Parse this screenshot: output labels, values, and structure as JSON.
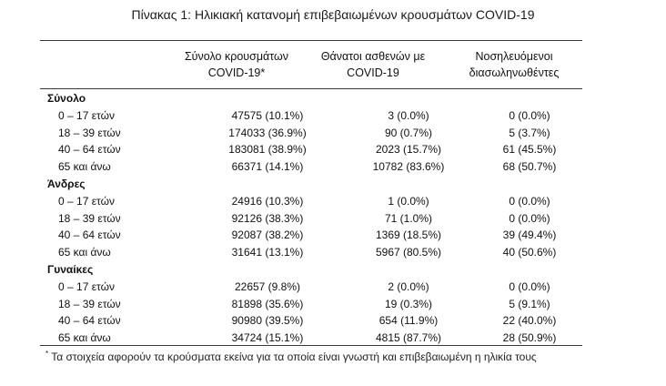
{
  "title": "Πίνακας 1: Ηλικιακή κατανομή επιβεβαιωμένων κρουσμάτων COVID-19",
  "columns": [
    {
      "line1": "Σύνολο κρουσμάτων",
      "line2": "COVID-19*"
    },
    {
      "line1": "Θάνατοι ασθενών με",
      "line2": "COVID-19"
    },
    {
      "line1": "Νοσηλευόμενοι",
      "line2": "διασωληνωθέντες"
    }
  ],
  "groups": [
    {
      "name": "Σύνολο",
      "rows": [
        {
          "age": "0 – 17 ετών",
          "cases": "47575 (10.1%)",
          "deaths": "3 (0.0%)",
          "icu": "0 (0.0%)"
        },
        {
          "age": "18 – 39 ετών",
          "cases": "174033 (36.9%)",
          "deaths": "90 (0.7%)",
          "icu": "5 (3.7%)"
        },
        {
          "age": "40 – 64 ετών",
          "cases": "183081 (38.9%)",
          "deaths": "2023 (15.7%)",
          "icu": "61 (45.5%)"
        },
        {
          "age": "65 και άνω",
          "cases": "66371 (14.1%)",
          "deaths": "10782 (83.6%)",
          "icu": "68 (50.7%)"
        }
      ]
    },
    {
      "name": "Άνδρες",
      "rows": [
        {
          "age": "0 – 17 ετών",
          "cases": "24916 (10.3%)",
          "deaths": "1 (0.0%)",
          "icu": "0 (0.0%)"
        },
        {
          "age": "18 – 39 ετών",
          "cases": "92126 (38.3%)",
          "deaths": "71 (1.0%)",
          "icu": "0 (0.0%)"
        },
        {
          "age": "40 – 64 ετών",
          "cases": "92087 (38.2%)",
          "deaths": "1369 (18.5%)",
          "icu": "39 (49.4%)"
        },
        {
          "age": "65 και άνω",
          "cases": "31641 (13.1%)",
          "deaths": "5967 (80.5%)",
          "icu": "40 (50.6%)"
        }
      ]
    },
    {
      "name": "Γυναίκες",
      "rows": [
        {
          "age": "0 – 17 ετών",
          "cases": "22657 (9.8%)",
          "deaths": "2 (0.0%)",
          "icu": "0 (0.0%)"
        },
        {
          "age": "18 – 39 ετών",
          "cases": "81898 (35.6%)",
          "deaths": "19 (0.3%)",
          "icu": "5 (9.1%)"
        },
        {
          "age": "40 – 64 ετών",
          "cases": "90980 (39.5%)",
          "deaths": "654 (11.9%)",
          "icu": "22 (40.0%)"
        },
        {
          "age": "65 και άνω",
          "cases": "34724 (15.1%)",
          "deaths": "4815 (87.7%)",
          "icu": "28 (50.9%)"
        }
      ]
    }
  ],
  "footnote": {
    "mark": "*",
    "text": " Τα στοιχεία αφορούν τα κρούσματα εκείνα για τα οποία είναι γνωστή και επιβεβαιωμένη η ηλικία τους"
  }
}
